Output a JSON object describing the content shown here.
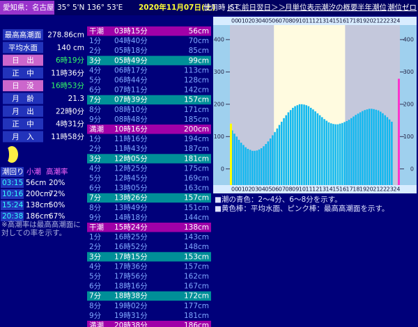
{
  "header": {
    "location": "愛知県：名古屋",
    "coords": "35° 5'N 136° 53'E",
    "date": "2020年11月07日(土)",
    "timezone": "使用時 JST",
    "links": [
      "＜＜前日",
      "翌日＞＞",
      "月単位表示",
      "潮汐の概要",
      "半年潮位",
      "潮位ゼロ"
    ]
  },
  "info": [
    {
      "label": "最高高潮面",
      "value": "278.86cm"
    },
    {
      "label": "平均水面",
      "value": "140 cm"
    },
    {
      "label": "日　出",
      "value": "6時19分",
      "highlight": true
    },
    {
      "label": "正　中",
      "value": "11時36分"
    },
    {
      "label": "日　没",
      "value": "16時53分",
      "highlight": true
    },
    {
      "label": "月　齢",
      "value": "21.3"
    },
    {
      "label": "月　出",
      "value": "22時0分"
    },
    {
      "label": "正　中",
      "value": "4時31分"
    },
    {
      "label": "月　入",
      "value": "11時58分"
    }
  ],
  "tide_summary": {
    "headers": [
      "潮回り",
      "小潮",
      "高潮率"
    ],
    "rows": [
      [
        "03:15",
        "56cm",
        "20%"
      ],
      [
        "10:16",
        "200cm",
        "72%"
      ],
      [
        "15:24",
        "138cm",
        "50%"
      ],
      [
        "20:38",
        "186cm",
        "67%"
      ]
    ]
  },
  "note": [
    "※高潮率は最高高潮面に",
    "対しての率を示す。"
  ],
  "tide_list": [
    {
      "label": "干潮",
      "time": "03時15分",
      "height": "56cm",
      "bg": "#a000a8"
    },
    {
      "label": "1分",
      "time": "04時40分",
      "height": "70cm"
    },
    {
      "label": "2分",
      "time": "05時18分",
      "height": "85cm"
    },
    {
      "label": "3分",
      "time": "05時49分",
      "height": "99cm",
      "bg": "#008f98"
    },
    {
      "label": "4分",
      "time": "06時17分",
      "height": "113cm"
    },
    {
      "label": "5分",
      "time": "06時44分",
      "height": "128cm"
    },
    {
      "label": "6分",
      "time": "07時11分",
      "height": "142cm"
    },
    {
      "label": "7分",
      "time": "07時39分",
      "height": "157cm",
      "bg": "#008f98"
    },
    {
      "label": "8分",
      "time": "08時10分",
      "height": "171cm"
    },
    {
      "label": "9分",
      "time": "08時48分",
      "height": "185cm"
    },
    {
      "label": "満潮",
      "time": "10時16分",
      "height": "200cm",
      "bg": "#a000a8"
    },
    {
      "label": "1分",
      "time": "11時16分",
      "height": "194cm"
    },
    {
      "label": "2分",
      "time": "11時43分",
      "height": "187cm"
    },
    {
      "label": "3分",
      "time": "12時05分",
      "height": "181cm",
      "bg": "#008f98"
    },
    {
      "label": "4分",
      "time": "12時25分",
      "height": "175cm"
    },
    {
      "label": "5分",
      "time": "12時45分",
      "height": "169cm"
    },
    {
      "label": "6分",
      "time": "13時05分",
      "height": "163cm"
    },
    {
      "label": "7分",
      "time": "13時26分",
      "height": "157cm",
      "bg": "#008f98"
    },
    {
      "label": "8分",
      "time": "13時49分",
      "height": "151cm"
    },
    {
      "label": "9分",
      "time": "14時18分",
      "height": "144cm"
    },
    {
      "label": "干潮",
      "time": "15時24分",
      "height": "138cm",
      "bg": "#a000a8"
    },
    {
      "label": "1分",
      "time": "16時25分",
      "height": "143cm"
    },
    {
      "label": "2分",
      "time": "16時52分",
      "height": "148cm"
    },
    {
      "label": "3分",
      "time": "17時15分",
      "height": "153cm",
      "bg": "#008f98"
    },
    {
      "label": "4分",
      "time": "17時36分",
      "height": "157cm"
    },
    {
      "label": "5分",
      "time": "17時56分",
      "height": "162cm"
    },
    {
      "label": "6分",
      "time": "18時16分",
      "height": "167cm"
    },
    {
      "label": "7分",
      "time": "18時38分",
      "height": "172cm",
      "bg": "#008f98"
    },
    {
      "label": "8分",
      "time": "19時02分",
      "height": "177cm"
    },
    {
      "label": "9分",
      "time": "19時31分",
      "height": "181cm"
    },
    {
      "label": "満潮",
      "time": "20時38分",
      "height": "186cm",
      "bg": "#a000a8"
    }
  ],
  "chart_data": {
    "type": "bar",
    "x": [
      0,
      0.33,
      0.67,
      1,
      1.33,
      1.67,
      2,
      2.33,
      2.67,
      3,
      3.33,
      3.67,
      4,
      4.33,
      4.67,
      5,
      5.33,
      5.67,
      6,
      6.33,
      6.67,
      7,
      7.33,
      7.67,
      8,
      8.33,
      8.67,
      9,
      9.33,
      9.67,
      10,
      10.33,
      10.67,
      11,
      11.33,
      11.67,
      12,
      12.33,
      12.67,
      13,
      13.33,
      13.67,
      14,
      14.33,
      14.67,
      15,
      15.33,
      15.67,
      16,
      16.33,
      16.67,
      17,
      17.33,
      17.67,
      18,
      18.33,
      18.67,
      19,
      19.33,
      19.67,
      20,
      20.33,
      20.67,
      21,
      21.33,
      21.67,
      22,
      22.33,
      22.67,
      23,
      23.33,
      23.67
    ],
    "values": [
      119,
      109,
      100,
      90,
      81,
      74,
      67,
      62,
      59,
      56,
      56,
      57,
      60,
      64,
      70,
      77,
      85,
      94,
      104,
      114,
      125,
      136,
      146,
      157,
      166,
      175,
      182,
      189,
      194,
      197,
      200,
      200,
      199,
      197,
      194,
      189,
      184,
      178,
      172,
      166,
      160,
      154,
      149,
      144,
      141,
      139,
      138,
      138,
      140,
      142,
      145,
      148,
      152,
      157,
      162,
      167,
      171,
      175,
      179,
      182,
      184,
      186,
      186,
      185,
      183,
      181,
      177,
      172,
      166,
      160,
      153,
      146
    ],
    "color": "#10b8f0",
    "background": "#c4c8dc",
    "daylight": {
      "from": 6.32,
      "to": 16.88,
      "color": "#fffbe0"
    },
    "markers": [
      {
        "value": 140,
        "color": "#ffff00",
        "side": "left"
      },
      {
        "value": 278.86,
        "color": "#ff33cc",
        "side": "right"
      }
    ],
    "xlim": [
      0,
      25
    ],
    "ylim": [
      -50,
      445
    ],
    "xticks": [
      {
        "value": 0,
        "label": "00"
      },
      {
        "value": 1,
        "label": "01"
      },
      {
        "value": 2,
        "label": "02"
      },
      {
        "value": 3,
        "label": "03"
      },
      {
        "value": 4,
        "label": "04"
      },
      {
        "value": 5,
        "label": "05"
      },
      {
        "value": 6,
        "label": "06"
      },
      {
        "value": 7,
        "label": "07"
      },
      {
        "value": 8,
        "label": "08"
      },
      {
        "value": 9,
        "label": "09"
      },
      {
        "value": 10,
        "label": "10"
      },
      {
        "value": 11,
        "label": "11"
      },
      {
        "value": 12,
        "label": "12"
      },
      {
        "value": 13,
        "label": "13"
      },
      {
        "value": 14,
        "label": "14"
      },
      {
        "value": 15,
        "label": "15"
      },
      {
        "value": 16,
        "label": "16"
      },
      {
        "value": 17,
        "label": "17"
      },
      {
        "value": 18,
        "label": "18"
      },
      {
        "value": 19,
        "label": "19"
      },
      {
        "value": 20,
        "label": "20"
      },
      {
        "value": 21,
        "label": "21"
      },
      {
        "value": 22,
        "label": "22"
      },
      {
        "value": 23,
        "label": "23"
      },
      {
        "value": 24,
        "label": "24"
      }
    ],
    "yticks": [
      0,
      100,
      200,
      300,
      400
    ],
    "notes": [
      "■潮の青色：2〜4分、6〜8分を示す。",
      "■黄色棒：平均水面、ピンク棒：最高高潮面を示す。"
    ]
  }
}
